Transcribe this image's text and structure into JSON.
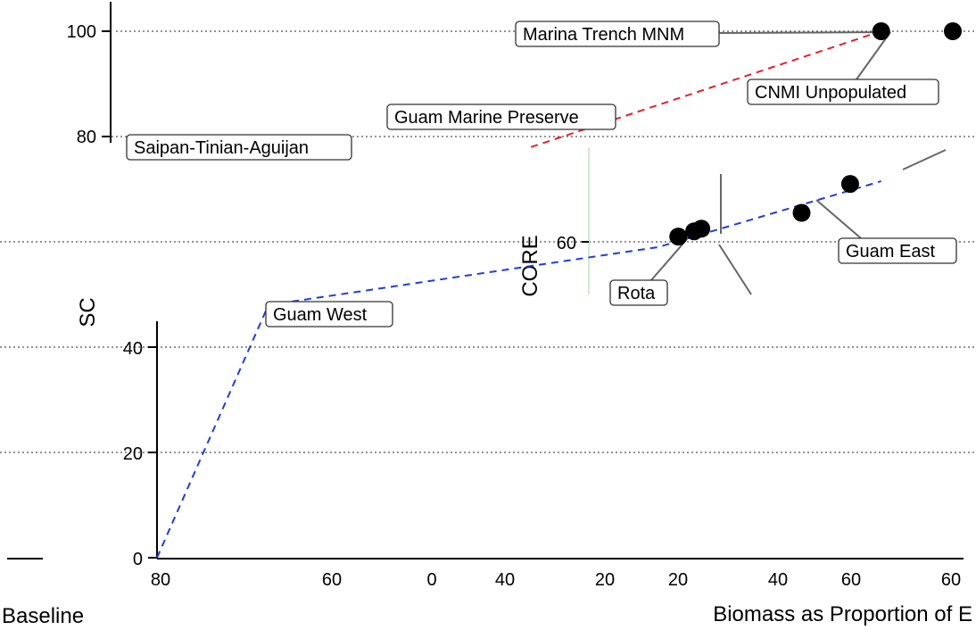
{
  "chart_data": {
    "type": "line",
    "title": "",
    "ylabel": "SC",
    "ylabel_inset": "CORE",
    "xlabel_left": "Baseline",
    "xlabel_right": "Biomass as Proportion of E",
    "ylim": [
      0,
      105
    ],
    "grid": "horizontal dashed",
    "y_ticks": [
      "0",
      "20",
      "40",
      "60",
      "80",
      "100"
    ],
    "x_ticks": [
      "80",
      "60",
      "0",
      "40",
      "20",
      "20",
      "40",
      "60",
      "60"
    ],
    "series": [
      {
        "color": "#1f3fd6",
        "style": "dashed",
        "points": [
          {
            "x": 0.0,
            "y": 0
          },
          {
            "x": 0.14,
            "y": 48
          },
          {
            "x": 0.63,
            "y": 59
          },
          {
            "x": 0.91,
            "y": 71.5
          }
        ]
      },
      {
        "color": "#e8202a",
        "style": "dashed",
        "points": [
          {
            "x": 0.47,
            "y": 78
          },
          {
            "x": 0.91,
            "y": 100
          }
        ]
      }
    ],
    "markers": [
      {
        "x": 0.655,
        "y": 61
      },
      {
        "x": 0.675,
        "y": 62
      },
      {
        "x": 0.684,
        "y": 62.5
      },
      {
        "x": 0.81,
        "y": 65.5
      },
      {
        "x": 0.871,
        "y": 71
      },
      {
        "x": 0.91,
        "y": 100
      },
      {
        "x": 1.0,
        "y": 100
      }
    ],
    "annotations": [
      "Marina Trench MNM",
      "CNMI Unpopulated",
      "Guam Marine Preserve",
      "Saipan-Tinian-Aguijan",
      "Guam West",
      "Guam East",
      "Rota"
    ]
  }
}
